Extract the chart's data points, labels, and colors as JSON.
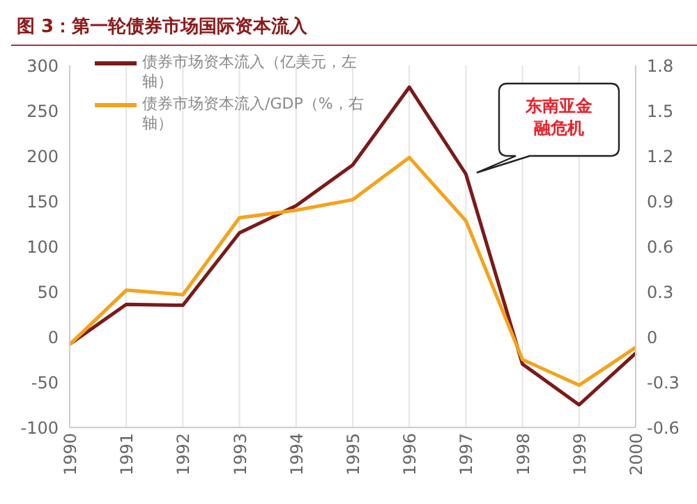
{
  "chart_data": {
    "type": "line",
    "title": "图 3：第一轮债券市场国际资本流入",
    "categories": [
      "1990",
      "1991",
      "1992",
      "1993",
      "1994",
      "1995",
      "1996",
      "1997",
      "1998",
      "1999",
      "2000"
    ],
    "series": [
      {
        "name": "债券市场资本流入（亿美元，左轴）",
        "color": "#7b1a1a",
        "values": [
          -8,
          36,
          35,
          115,
          145,
          190,
          276,
          180,
          -30,
          -75,
          -18
        ]
      },
      {
        "name": "债券市场资本流入/GDP（%，右轴）",
        "color": "#f5a21b",
        "axis": "y2",
        "values": [
          -0.05,
          0.31,
          0.28,
          0.79,
          0.84,
          0.91,
          1.19,
          0.77,
          -0.15,
          -0.32,
          -0.07
        ]
      }
    ],
    "ylim": [
      -100,
      300
    ],
    "yticks": [
      -100,
      -50,
      0,
      50,
      100,
      150,
      200,
      250,
      300
    ],
    "y2lim": [
      -0.6,
      1.8
    ],
    "y2ticks": [
      {
        "value": -0.6,
        "label": "-0.6"
      },
      {
        "value": -0.3,
        "label": "-0.3"
      },
      0,
      {
        "value": 0.3,
        "label": "0.3"
      },
      {
        "value": 0.6,
        "label": "0.6"
      },
      {
        "value": 0.9,
        "label": "0.9"
      },
      {
        "value": 1.2,
        "label": "1.2"
      },
      {
        "value": 1.5,
        "label": "1.5"
      },
      {
        "value": 1.8,
        "label": "1.8"
      }
    ],
    "grid": "x",
    "legend": "top left",
    "marker": "none",
    "line_style": "solid",
    "annotations": [
      "东南亚金融危机"
    ]
  }
}
